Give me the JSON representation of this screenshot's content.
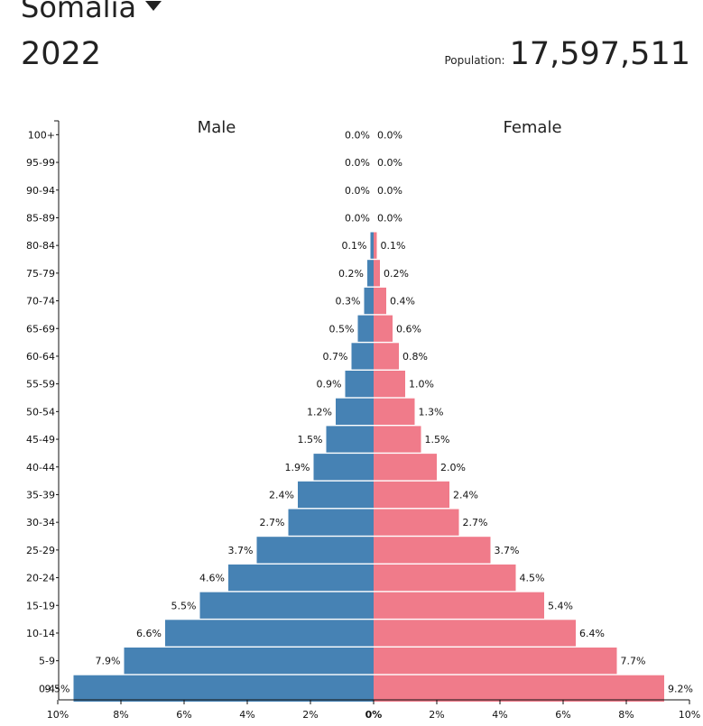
{
  "header": {
    "country": "Somalia",
    "year": "2022",
    "population_label": "Population:",
    "population_value": "17,597,511"
  },
  "colors": {
    "male": "#4682b4",
    "female": "#f07b8a"
  },
  "chart_data": {
    "type": "bar",
    "orientation": "horizontal-pyramid",
    "categories": [
      "100+",
      "95-99",
      "90-94",
      "85-89",
      "80-84",
      "75-79",
      "70-74",
      "65-69",
      "60-64",
      "55-59",
      "50-54",
      "45-49",
      "40-44",
      "35-39",
      "30-34",
      "25-29",
      "20-24",
      "15-19",
      "10-14",
      "5-9",
      "0-4"
    ],
    "series": [
      {
        "name": "Male",
        "values": [
          0.0,
          0.0,
          0.0,
          0.0,
          0.1,
          0.2,
          0.3,
          0.5,
          0.7,
          0.9,
          1.2,
          1.5,
          1.9,
          2.4,
          2.7,
          3.7,
          4.6,
          5.5,
          6.6,
          7.9,
          9.5
        ],
        "labels": [
          "0.0%",
          "0.0%",
          "0.0%",
          "0.0%",
          "0.1%",
          "0.2%",
          "0.3%",
          "0.5%",
          "0.7%",
          "0.9%",
          "1.2%",
          "1.5%",
          "1.9%",
          "2.4%",
          "2.7%",
          "3.7%",
          "4.6%",
          "5.5%",
          "6.6%",
          "7.9%",
          "9.5%"
        ]
      },
      {
        "name": "Female",
        "values": [
          0.0,
          0.0,
          0.0,
          0.0,
          0.1,
          0.2,
          0.4,
          0.6,
          0.8,
          1.0,
          1.3,
          1.5,
          2.0,
          2.4,
          2.7,
          3.7,
          4.5,
          5.4,
          6.4,
          7.7,
          9.2
        ],
        "labels": [
          "0.0%",
          "0.0%",
          "0.0%",
          "0.0%",
          "0.1%",
          "0.2%",
          "0.4%",
          "0.6%",
          "0.8%",
          "1.0%",
          "1.3%",
          "1.5%",
          "2.0%",
          "2.4%",
          "2.7%",
          "3.7%",
          "4.5%",
          "5.4%",
          "6.4%",
          "7.7%",
          "9.2%"
        ]
      }
    ],
    "xlim": [
      -10,
      10
    ],
    "x_ticks": [
      "10%",
      "8%",
      "6%",
      "4%",
      "2%",
      "0%",
      "2%",
      "4%",
      "6%",
      "8%",
      "10%"
    ],
    "grid": false
  }
}
